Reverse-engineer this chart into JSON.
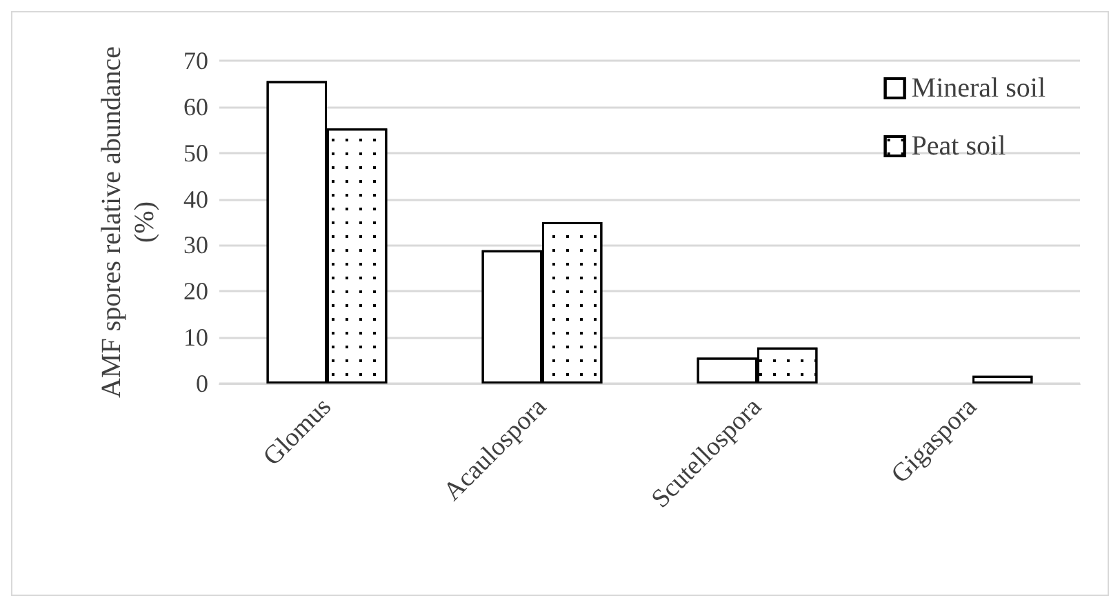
{
  "chart_data": {
    "type": "bar",
    "ylabel": "AMF spores relative abundance (%)",
    "categories": [
      "Glomus",
      "Acaulospora",
      "Scutellospora",
      "Gigaspora"
    ],
    "series": [
      {
        "name": "Mineral soil",
        "color": "#ffffff",
        "values": [
          65.6,
          28.9,
          5.6,
          null
        ]
      },
      {
        "name": "Peat soil",
        "color": "#ffffff",
        "values": [
          55.3,
          35,
          7.8,
          1.7
        ]
      }
    ],
    "ylim": [
      0,
      70
    ],
    "yticks": [
      0,
      10,
      20,
      30,
      40,
      50,
      60,
      70
    ],
    "grid": "y",
    "legend": "top right"
  }
}
